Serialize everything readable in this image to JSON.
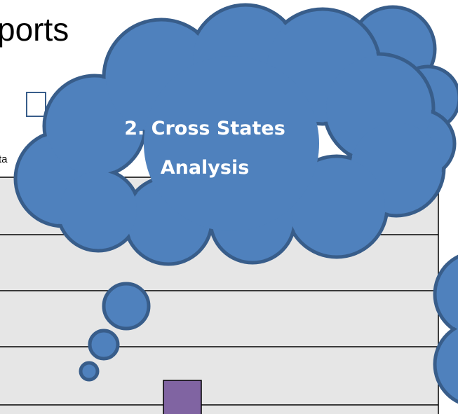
{
  "title_fragment": "ports",
  "label_fragment": "ta",
  "callout": {
    "line1": "2. Cross States",
    "line2": "Analysis"
  }
}
